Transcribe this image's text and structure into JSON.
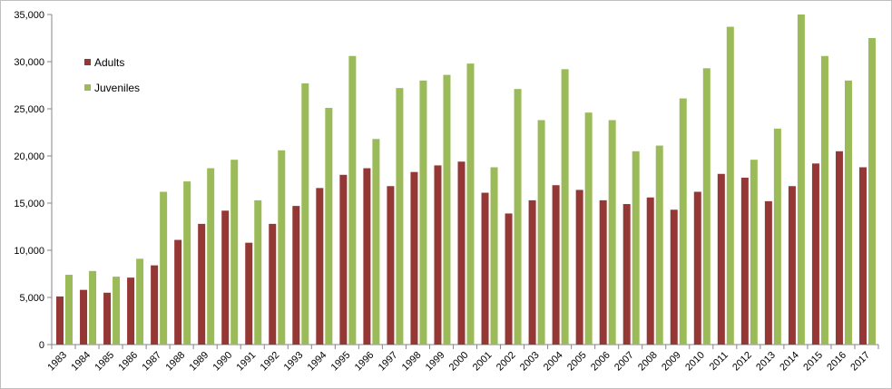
{
  "chart_data": {
    "type": "bar",
    "categories": [
      "1983",
      "1984",
      "1985",
      "1986",
      "1987",
      "1988",
      "1989",
      "1990",
      "1991",
      "1992",
      "1993",
      "1994",
      "1995",
      "1996",
      "1997",
      "1998",
      "1999",
      "2000",
      "2001",
      "2002",
      "2003",
      "2004",
      "2005",
      "2006",
      "2007",
      "2008",
      "2009",
      "2010",
      "2011",
      "2012",
      "2013",
      "2014",
      "2015",
      "2016",
      "2017"
    ],
    "series": [
      {
        "name": "Adults",
        "color": "#953735",
        "values": [
          5100,
          5800,
          5500,
          7100,
          8400,
          11100,
          12800,
          14200,
          10800,
          12800,
          14700,
          16600,
          18000,
          18700,
          16800,
          18300,
          19000,
          19400,
          16100,
          13900,
          15300,
          16900,
          16400,
          15300,
          14900,
          15600,
          14300,
          16200,
          18100,
          17700,
          15200,
          16800,
          19200,
          20500,
          18800
        ]
      },
      {
        "name": "Juveniles",
        "color": "#9BBB59",
        "values": [
          7400,
          7800,
          7200,
          9100,
          16200,
          17300,
          18700,
          19600,
          15300,
          20600,
          27700,
          25100,
          30600,
          21800,
          27200,
          28000,
          28600,
          29800,
          18800,
          27100,
          23800,
          29200,
          24600,
          23800,
          20500,
          21100,
          26100,
          29300,
          33700,
          19600,
          22900,
          35000,
          30600,
          28000,
          32500
        ]
      }
    ],
    "title": "",
    "xlabel": "",
    "ylabel": "",
    "ylim": [
      0,
      35000
    ],
    "yticks": [
      "0",
      "5,000",
      "10,000",
      "15,000",
      "20,000",
      "25,000",
      "30,000",
      "35,000"
    ],
    "grid": false,
    "legend_position": "top-left"
  }
}
